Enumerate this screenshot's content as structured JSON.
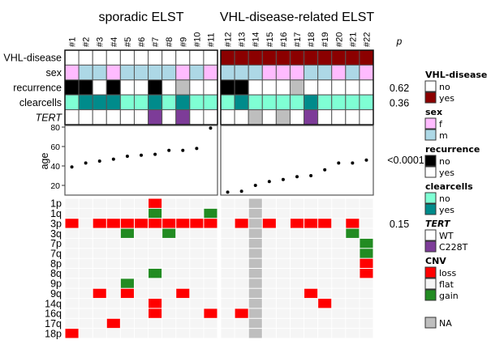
{
  "chart_data": {
    "type": "heatmap",
    "groups": [
      {
        "title": "sporadic ELST",
        "samples": [
          "#1",
          "#2",
          "#3",
          "#4",
          "#5",
          "#6",
          "#7",
          "#8",
          "#9",
          "#10",
          "#11"
        ]
      },
      {
        "title": "VHL-disease-related ELST",
        "samples": [
          "#12",
          "#13",
          "#14",
          "#15",
          "#16",
          "#17",
          "#18",
          "#19",
          "#20",
          "#21",
          "#22"
        ]
      }
    ],
    "p_header": "p",
    "annotation_rows": [
      {
        "name": "VHL-disease",
        "italic": false,
        "p": "",
        "values": [
          "no",
          "no",
          "no",
          "no",
          "no",
          "no",
          "no",
          "no",
          "no",
          "no",
          "no",
          "yes",
          "yes",
          "yes",
          "yes",
          "yes",
          "yes",
          "yes",
          "yes",
          "yes",
          "yes",
          "yes"
        ]
      },
      {
        "name": "sex",
        "italic": false,
        "p": "",
        "values": [
          "f",
          "m",
          "m",
          "f",
          "m",
          "m",
          "m",
          "m",
          "f",
          "m",
          "f",
          "m",
          "m",
          "m",
          "f",
          "f",
          "f",
          "m",
          "m",
          "f",
          "m",
          "f"
        ]
      },
      {
        "name": "recurrence",
        "italic": false,
        "p": "0.62",
        "values": [
          "no",
          "no",
          "yes",
          "no",
          "yes",
          "yes",
          "no",
          "yes",
          "NA",
          "yes",
          "yes",
          "no",
          "no",
          "yes",
          "yes",
          "yes",
          "NA",
          "yes",
          "yes",
          "yes",
          "yes",
          "yes"
        ]
      },
      {
        "name": "clearcells",
        "italic": false,
        "p": "0.36",
        "values": [
          "no",
          "yes",
          "yes",
          "yes",
          "no",
          "no",
          "yes",
          "no",
          "yes",
          "no",
          "no",
          "no",
          "yes",
          "no",
          "no",
          "no",
          "no",
          "yes",
          "no",
          "no",
          "no",
          "no"
        ]
      },
      {
        "name": "TERT",
        "italic": true,
        "p": "",
        "values": [
          "WT",
          "WT",
          "WT",
          "WT",
          "WT",
          "WT",
          "C228T",
          "WT",
          "C228T",
          "WT",
          "WT",
          "WT",
          "WT",
          "NA",
          "WT",
          "NA",
          "WT",
          "C228T",
          "WT",
          "WT",
          "WT",
          "WT"
        ]
      }
    ],
    "age_panel": {
      "ylabel": "age",
      "yticks": [
        20,
        40,
        60,
        80
      ],
      "ylim": [
        10,
        83
      ],
      "p": "<0.0001",
      "values": [
        39,
        43,
        45,
        47,
        50,
        51,
        52,
        56,
        56,
        58,
        79,
        13,
        14,
        20,
        24,
        26,
        29,
        30,
        36,
        43,
        43,
        46
      ]
    },
    "cnv_panel": {
      "p_row": "3p",
      "p": "0.15",
      "rows": [
        "1p",
        "1q",
        "3p",
        "3q",
        "7p",
        "7q",
        "8p",
        "8q",
        "9p",
        "9q",
        "14q",
        "16q",
        "17q",
        "18p"
      ],
      "na_samples": [
        "#14"
      ],
      "events": {
        "1p": {
          "#7": "loss"
        },
        "1q": {
          "#7": "gain",
          "#11": "gain"
        },
        "3p": {
          "#1": "loss",
          "#3": "loss",
          "#4": "loss",
          "#5": "loss",
          "#6": "loss",
          "#7": "loss",
          "#8": "loss",
          "#9": "loss",
          "#10": "loss",
          "#11": "loss",
          "#13": "loss",
          "#15": "loss",
          "#17": "loss",
          "#18": "loss",
          "#19": "loss",
          "#21": "loss"
        },
        "3q": {
          "#5": "gain",
          "#8": "gain",
          "#21": "gain"
        },
        "7p": {
          "#22": "gain"
        },
        "7q": {
          "#22": "gain"
        },
        "8p": {
          "#22": "loss"
        },
        "8q": {
          "#7": "gain",
          "#22": "loss"
        },
        "9p": {
          "#5": "gain"
        },
        "9q": {
          "#3": "loss",
          "#5": "loss",
          "#9": "loss",
          "#18": "loss"
        },
        "14q": {
          "#7": "loss",
          "#19": "loss"
        },
        "16q": {
          "#7": "loss",
          "#11": "loss",
          "#13": "loss"
        },
        "17q": {
          "#4": "loss"
        },
        "18p": {
          "#1": "loss"
        }
      }
    },
    "legend": [
      {
        "title": "VHL-disease",
        "italic": false,
        "key": "VHL-disease",
        "items": [
          {
            "label": "no",
            "color": "#ffffff"
          },
          {
            "label": "yes",
            "color": "#8b0000"
          }
        ]
      },
      {
        "title": "sex",
        "italic": false,
        "key": "sex",
        "items": [
          {
            "label": "f",
            "color": "#ffbbff"
          },
          {
            "label": "m",
            "color": "#add8e6"
          }
        ]
      },
      {
        "title": "recurrence",
        "italic": false,
        "key": "recurrence",
        "items": [
          {
            "label": "no",
            "color": "#000000"
          },
          {
            "label": "yes",
            "color": "#ffffff"
          }
        ]
      },
      {
        "title": "clearcells",
        "italic": false,
        "key": "clearcells",
        "items": [
          {
            "label": "no",
            "color": "#7fffd4"
          },
          {
            "label": "yes",
            "color": "#008b8b"
          }
        ]
      },
      {
        "title": "TERT",
        "italic": true,
        "key": "TERT",
        "items": [
          {
            "label": "WT",
            "color": "#ffffff"
          },
          {
            "label": "C228T",
            "color": "#7d3c98"
          }
        ]
      },
      {
        "title": "CNV",
        "italic": false,
        "key": "CNV",
        "items": [
          {
            "label": "loss",
            "color": "#ff0000"
          },
          {
            "label": "flat",
            "color": "#f5f5f5"
          },
          {
            "label": "gain",
            "color": "#228b22"
          }
        ]
      },
      {
        "title": "",
        "italic": false,
        "key": "NA",
        "items": [
          {
            "label": "NA",
            "color": "#bebebe"
          }
        ]
      }
    ],
    "colors": {
      "VHL-disease": {
        "no": "#ffffff",
        "yes": "#8b0000"
      },
      "sex": {
        "f": "#ffbbff",
        "m": "#add8e6"
      },
      "recurrence": {
        "no": "#000000",
        "yes": "#ffffff",
        "NA": "#bebebe"
      },
      "clearcells": {
        "no": "#7fffd4",
        "yes": "#008b8b"
      },
      "TERT": {
        "WT": "#ffffff",
        "C228T": "#7d3c98",
        "NA": "#bebebe"
      },
      "CNV": {
        "loss": "#ff0000",
        "flat": "#f5f5f5",
        "gain": "#228b22",
        "NA": "#bebebe"
      }
    }
  }
}
